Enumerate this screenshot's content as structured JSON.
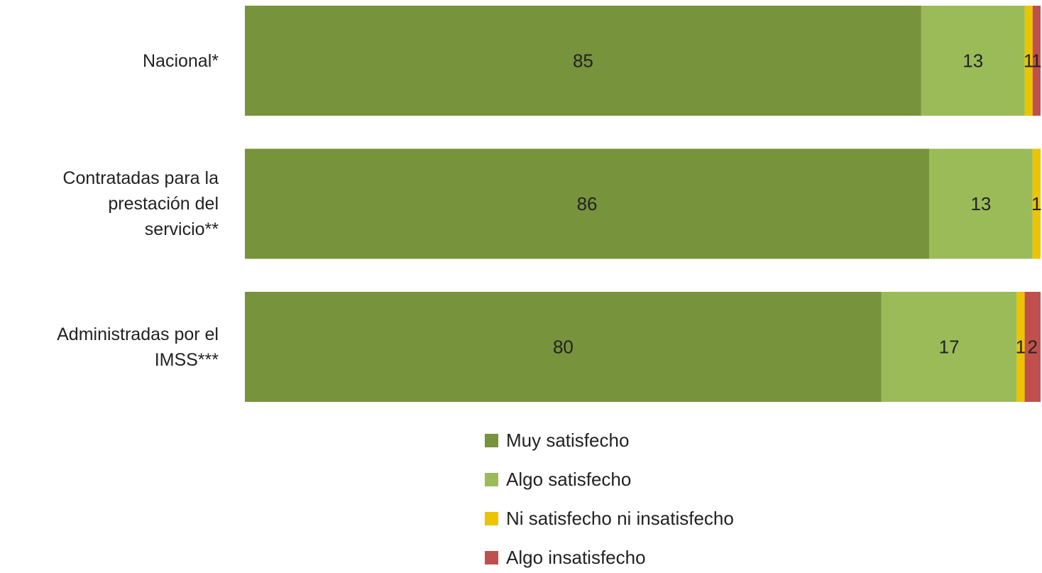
{
  "chart_data": {
    "type": "stacked-barh",
    "categories": [
      "Nacional*",
      "Contratadas para la prestación del servicio**",
      "Administradas por el IMSS***"
    ],
    "series": [
      {
        "name": "Muy satisfecho",
        "color": "#77933c",
        "values": [
          85,
          86,
          80
        ]
      },
      {
        "name": "Algo satisfecho",
        "color": "#9bbb59",
        "values": [
          13,
          13,
          17
        ]
      },
      {
        "name": "Ni satisfecho ni insatisfecho",
        "color": "#ecc400",
        "values": [
          1,
          1,
          1
        ]
      },
      {
        "name": "Algo insatisfecho",
        "color": "#c0504d",
        "values": [
          1,
          null,
          2
        ]
      }
    ],
    "xlim": [
      0,
      100
    ],
    "legend": "bottom"
  }
}
